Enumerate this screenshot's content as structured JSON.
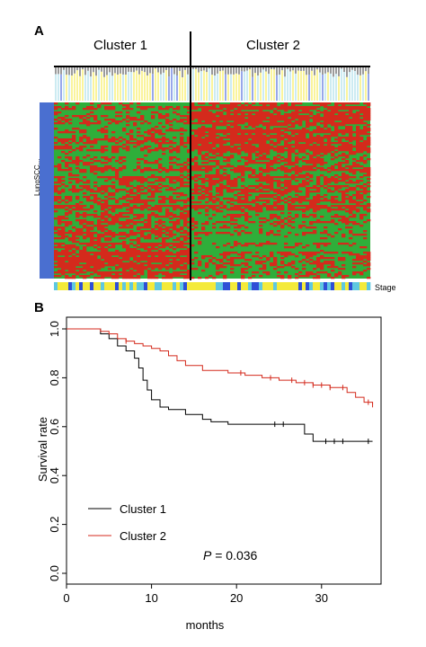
{
  "panel_a": {
    "letter": "A",
    "cluster1_label": "Cluster 1",
    "cluster2_label": "Cluster 2",
    "side_label": "LungSCC...",
    "stage_label": "Stage",
    "colors": {
      "red": "#d42a1c",
      "green": "#2fae3a",
      "side_bar": "#4a6fd0",
      "yellow": "#f4ea3a",
      "cyan": "#5fc8e0",
      "blue": "#2f4fd6"
    }
  },
  "panel_b": {
    "letter": "B",
    "p_prefix": "P",
    "p_suffix": " = 0.036"
  },
  "chart_data": {
    "type": "line",
    "title": "",
    "xlabel": "months",
    "ylabel": "Survival rate",
    "xlim": [
      0,
      37
    ],
    "ylim": [
      0,
      1.0
    ],
    "xticks": [
      0,
      10,
      20,
      30
    ],
    "yticks": [
      0.0,
      0.2,
      0.4,
      0.6,
      0.8,
      1.0
    ],
    "ytick_labels": [
      "0.0",
      "0.2",
      "0.4",
      "0.6",
      "0.8",
      "1.0"
    ],
    "legend": "bottom-left",
    "series": [
      {
        "name": "Cluster 1",
        "color": "#000000",
        "x": [
          0,
          3,
          4,
          5,
          6,
          7,
          8,
          8.5,
          9,
          9.5,
          10,
          11,
          12,
          14,
          16,
          17,
          19,
          22,
          27,
          28,
          29,
          36
        ],
        "y": [
          1.0,
          1.0,
          0.98,
          0.96,
          0.93,
          0.91,
          0.88,
          0.84,
          0.79,
          0.75,
          0.71,
          0.68,
          0.67,
          0.65,
          0.63,
          0.62,
          0.61,
          0.61,
          0.61,
          0.57,
          0.54,
          0.54
        ],
        "censor_x": [
          24.5,
          25.5,
          30.5,
          31.5,
          32.5,
          35.5
        ]
      },
      {
        "name": "Cluster 2",
        "color": "#d42a1c",
        "x": [
          0,
          3,
          4,
          5,
          6,
          7,
          8,
          9,
          10,
          11,
          12,
          13,
          14,
          16,
          19,
          21,
          23,
          25,
          27,
          29,
          31,
          33,
          34,
          35,
          36
        ],
        "y": [
          1.0,
          1.0,
          0.99,
          0.98,
          0.96,
          0.95,
          0.94,
          0.93,
          0.92,
          0.91,
          0.89,
          0.87,
          0.85,
          0.83,
          0.82,
          0.81,
          0.8,
          0.79,
          0.78,
          0.77,
          0.76,
          0.74,
          0.72,
          0.7,
          0.69
        ],
        "censor_x": [
          7,
          20.5,
          24,
          26.5,
          28,
          29,
          30,
          31,
          32.5,
          35.5,
          36
        ]
      }
    ]
  }
}
